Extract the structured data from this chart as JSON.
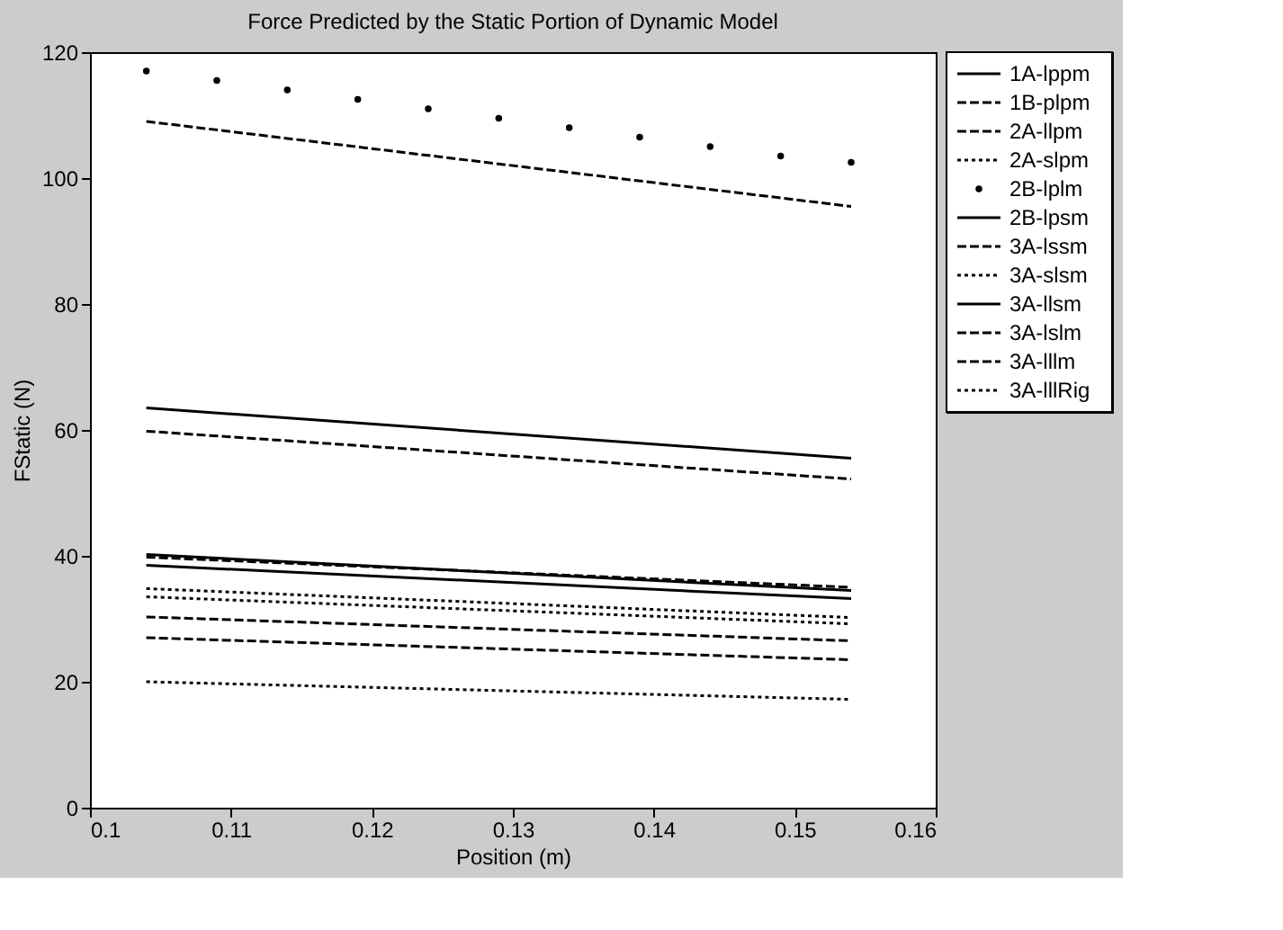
{
  "chart_data": {
    "type": "line",
    "title": "Force Predicted by the Static Portion of Dynamic Model",
    "xlabel": "Position (m)",
    "ylabel": "FStatic (N)",
    "x": [
      0.104,
      0.154
    ],
    "xlim": [
      0.1,
      0.16
    ],
    "xticks": [
      0.1,
      0.11,
      0.12,
      0.13,
      0.14,
      0.15,
      0.16
    ],
    "ylim": [
      0,
      120
    ],
    "yticks": [
      0,
      20,
      40,
      60,
      80,
      100,
      120
    ],
    "grid": false,
    "legend": "right",
    "series": [
      {
        "name": "1A-lppm",
        "color": "#000000",
        "line_style": "solid",
        "values": [
          40.2,
          34.5
        ]
      },
      {
        "name": "1B-plpm",
        "color": "#000000",
        "line_style": "dashed",
        "values": [
          109,
          95.5
        ]
      },
      {
        "name": "2A-llpm",
        "color": "#000000",
        "line_style": "dashed",
        "values": [
          39.8,
          35
        ]
      },
      {
        "name": "2A-slpm",
        "color": "#000000",
        "line_style": "dotted",
        "values": [
          34.8,
          30.2
        ]
      },
      {
        "name": "2B-lplm",
        "color": "#000000",
        "type": "scatter",
        "marker": "circle",
        "x": [
          0.104,
          0.109,
          0.114,
          0.119,
          0.124,
          0.129,
          0.134,
          0.139,
          0.144,
          0.149,
          0.154
        ],
        "values": [
          117,
          115.5,
          114,
          112.5,
          111,
          109.5,
          108,
          106.5,
          105,
          103.5,
          102.5
        ]
      },
      {
        "name": "2B-lpsm",
        "color": "#000000",
        "line_style": "solid",
        "values": [
          63.5,
          55.5
        ]
      },
      {
        "name": "3A-lssm",
        "color": "#000000",
        "line_style": "dashed",
        "values": [
          59.8,
          52.2
        ]
      },
      {
        "name": "3A-slsm",
        "color": "#000000",
        "line_style": "dotted",
        "values": [
          33.5,
          29.2
        ]
      },
      {
        "name": "3A-llsm",
        "color": "#000000",
        "line_style": "solid",
        "values": [
          38.5,
          33.2
        ]
      },
      {
        "name": "3A-lslm",
        "color": "#000000",
        "line_style": "dashed",
        "values": [
          27,
          23.5
        ]
      },
      {
        "name": "3A-lllm",
        "color": "#000000",
        "line_style": "dashed",
        "values": [
          30.3,
          26.5
        ]
      },
      {
        "name": "3A-lllRig",
        "color": "#000000",
        "line_style": "dotted",
        "values": [
          20,
          17.2
        ]
      }
    ]
  }
}
